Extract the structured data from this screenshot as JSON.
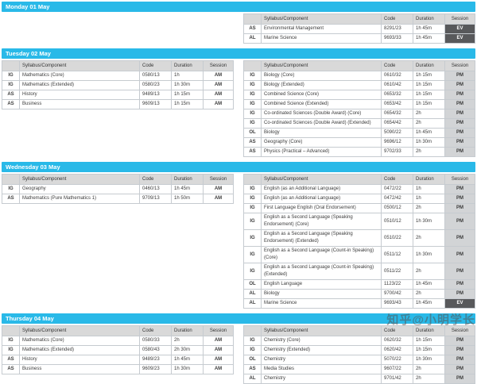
{
  "watermark": "知乎@小明学长",
  "colors": {
    "day_bar": "#29b9e8",
    "header_bg": "#d9d9d9",
    "pm_bg": "#d2d4d6",
    "ev_bg": "#58595b",
    "ev_text": "#ffffff"
  },
  "table_columns": [
    "",
    "Syllabus/Component",
    "Code",
    "Duration",
    "Session"
  ],
  "days": [
    {
      "title": "Monday 01 May",
      "tables": {
        "left": null,
        "right": [
          {
            "qual": "AS",
            "syllabus": "Environmental Management",
            "code": "8291/23",
            "duration": "1h 45m",
            "session": "EV"
          },
          {
            "qual": "AL",
            "syllabus": "Marine Science",
            "code": "9693/33",
            "duration": "1h 45m",
            "session": "EV"
          }
        ]
      }
    },
    {
      "title": "Tuesday 02 May",
      "tables": {
        "left": [
          {
            "qual": "IG",
            "syllabus": "Mathematics (Core)",
            "code": "0580/13",
            "duration": "1h",
            "session": "AM"
          },
          {
            "qual": "IG",
            "syllabus": "Mathematics (Extended)",
            "code": "0580/23",
            "duration": "1h 30m",
            "session": "AM"
          },
          {
            "qual": "AS",
            "syllabus": "History",
            "code": "9489/13",
            "duration": "1h 15m",
            "session": "AM"
          },
          {
            "qual": "AS",
            "syllabus": "Business",
            "code": "9609/13",
            "duration": "1h 15m",
            "session": "AM"
          }
        ],
        "right": [
          {
            "qual": "IG",
            "syllabus": "Biology (Core)",
            "code": "0610/32",
            "duration": "1h 15m",
            "session": "PM"
          },
          {
            "qual": "IG",
            "syllabus": "Biology (Extended)",
            "code": "0610/42",
            "duration": "1h 15m",
            "session": "PM"
          },
          {
            "qual": "IG",
            "syllabus": "Combined Science (Core)",
            "code": "0653/32",
            "duration": "1h 15m",
            "session": "PM"
          },
          {
            "qual": "IG",
            "syllabus": "Combined Science (Extended)",
            "code": "0653/42",
            "duration": "1h 15m",
            "session": "PM"
          },
          {
            "qual": "IG",
            "syllabus": "Co-ordinated Sciences (Double Award) (Core)",
            "code": "0654/32",
            "duration": "2h",
            "session": "PM"
          },
          {
            "qual": "IG",
            "syllabus": "Co-ordinated Sciences (Double Award) (Extended)",
            "code": "0654/42",
            "duration": "2h",
            "session": "PM"
          },
          {
            "qual": "OL",
            "syllabus": "Biology",
            "code": "5090/22",
            "duration": "1h 45m",
            "session": "PM"
          },
          {
            "qual": "AS",
            "syllabus": "Geography (Core)",
            "code": "9696/12",
            "duration": "1h 30m",
            "session": "PM"
          },
          {
            "qual": "AS",
            "syllabus": "Physics (Practical – Advanced)",
            "code": "9702/33",
            "duration": "2h",
            "session": "PM"
          }
        ]
      }
    },
    {
      "title": "Wednesday 03 May",
      "tables": {
        "left": [
          {
            "qual": "IG",
            "syllabus": "Geography",
            "code": "0460/13",
            "duration": "1h 45m",
            "session": "AM"
          },
          {
            "qual": "AS",
            "syllabus": "Mathematics (Pure Mathematics 1)",
            "code": "9709/13",
            "duration": "1h 50m",
            "session": "AM"
          }
        ],
        "right": [
          {
            "qual": "IG",
            "syllabus": "English (as an Additional Language)",
            "code": "0472/22",
            "duration": "1h",
            "session": "PM"
          },
          {
            "qual": "IG",
            "syllabus": "English (as an Additional Language)",
            "code": "0472/42",
            "duration": "1h",
            "session": "PM"
          },
          {
            "qual": "IG",
            "syllabus": "First Language English (Oral Endorsement)",
            "code": "0500/12",
            "duration": "2h",
            "session": "PM"
          },
          {
            "qual": "IG",
            "syllabus": "English as a Second Language (Speaking Endorsement) (Core)",
            "code": "0510/12",
            "duration": "1h 30m",
            "session": "PM"
          },
          {
            "qual": "IG",
            "syllabus": "English as a Second Language (Speaking Endorsement) (Extended)",
            "code": "0510/22",
            "duration": "2h",
            "session": "PM"
          },
          {
            "qual": "IG",
            "syllabus": "English as a Second Language (Count-in Speaking) (Core)",
            "code": "0511/12",
            "duration": "1h 30m",
            "session": "PM"
          },
          {
            "qual": "IG",
            "syllabus": "English as a Second Language (Count-in Speaking) (Extended)",
            "code": "0511/22",
            "duration": "2h",
            "session": "PM"
          },
          {
            "qual": "OL",
            "syllabus": "English Language",
            "code": "1123/22",
            "duration": "1h 45m",
            "session": "PM"
          },
          {
            "qual": "AL",
            "syllabus": "Biology",
            "code": "9700/42",
            "duration": "2h",
            "session": "PM"
          },
          {
            "qual": "AL",
            "syllabus": "Marine Science",
            "code": "9693/43",
            "duration": "1h 45m",
            "session": "EV"
          }
        ]
      }
    },
    {
      "title": "Thursday 04 May",
      "tables": {
        "left": [
          {
            "qual": "IG",
            "syllabus": "Mathematics (Core)",
            "code": "0580/33",
            "duration": "2h",
            "session": "AM"
          },
          {
            "qual": "IG",
            "syllabus": "Mathematics (Extended)",
            "code": "0580/43",
            "duration": "2h 30m",
            "session": "AM"
          },
          {
            "qual": "AS",
            "syllabus": "History",
            "code": "9489/23",
            "duration": "1h 45m",
            "session": "AM"
          },
          {
            "qual": "AS",
            "syllabus": "Business",
            "code": "9609/23",
            "duration": "1h 30m",
            "session": "AM"
          }
        ],
        "right": [
          {
            "qual": "IG",
            "syllabus": "Chemistry (Core)",
            "code": "0620/32",
            "duration": "1h 15m",
            "session": "PM"
          },
          {
            "qual": "IG",
            "syllabus": "Chemistry (Extended)",
            "code": "0620/42",
            "duration": "1h 15m",
            "session": "PM"
          },
          {
            "qual": "OL",
            "syllabus": "Chemistry",
            "code": "5070/22",
            "duration": "1h 30m",
            "session": "PM"
          },
          {
            "qual": "AS",
            "syllabus": "Media Studies",
            "code": "9607/22",
            "duration": "2h",
            "session": "PM"
          },
          {
            "qual": "AL",
            "syllabus": "Chemistry",
            "code": "9701/42",
            "duration": "2h",
            "session": "PM"
          }
        ]
      }
    }
  ]
}
